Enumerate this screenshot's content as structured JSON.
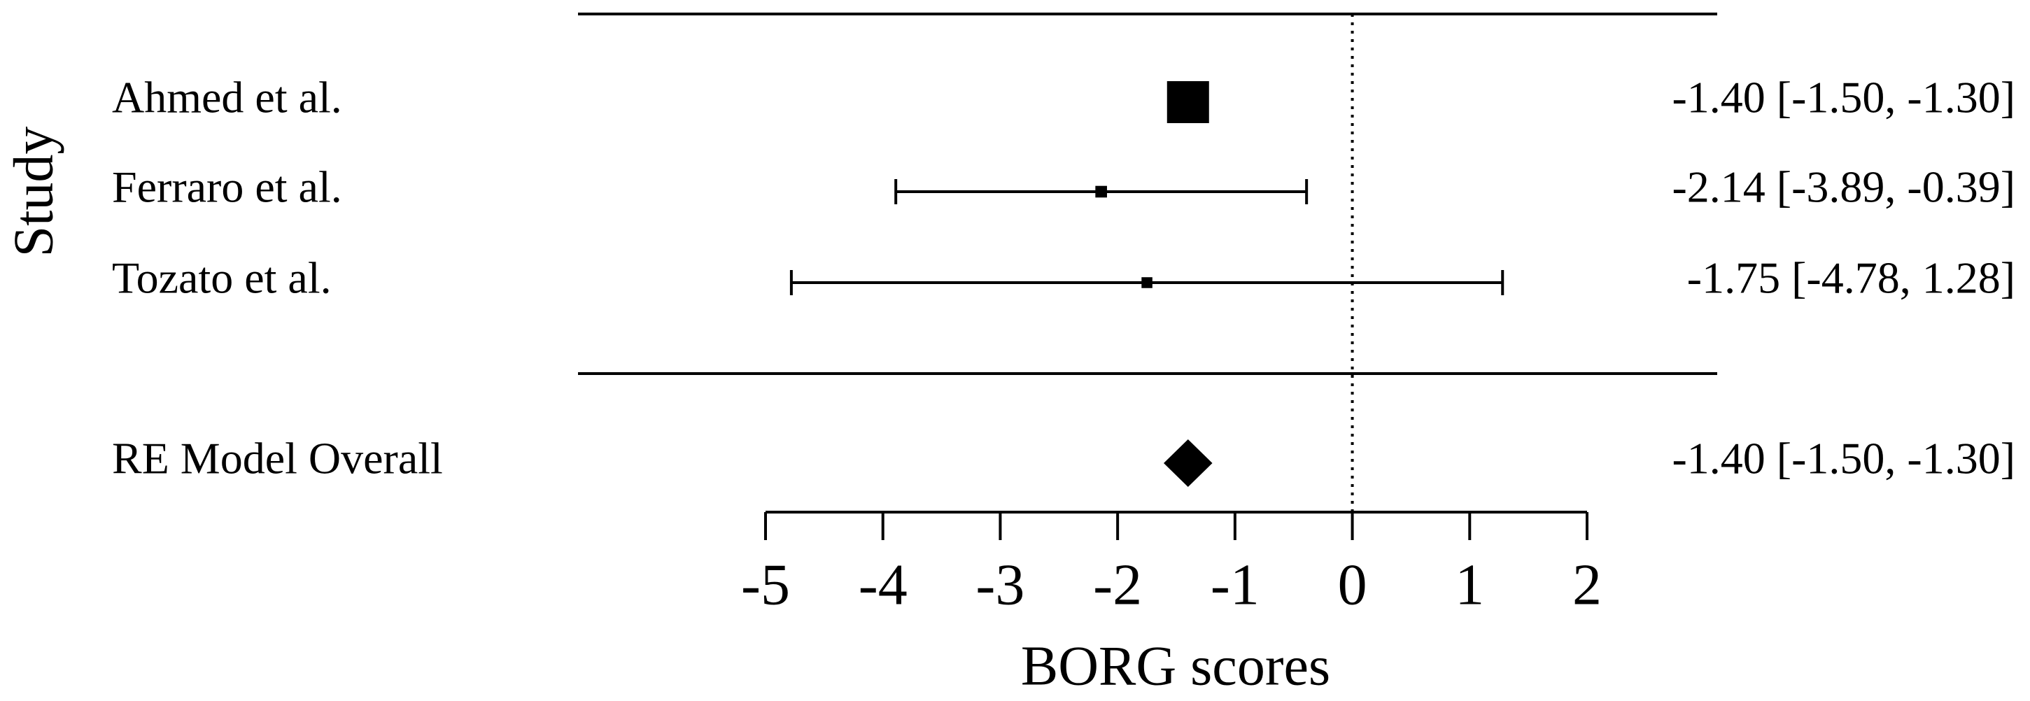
{
  "chart_data": {
    "type": "forest",
    "y_label": "Study",
    "x_label": "BORG scores",
    "categories": [
      "Ahmed et al.",
      "Ferraro et al.",
      "Tozato et al."
    ],
    "values": [
      -1.4,
      -2.14,
      -1.75
    ],
    "lower": [
      -1.5,
      -3.89,
      -4.78
    ],
    "upper": [
      -1.3,
      -0.39,
      1.28
    ],
    "value_labels": [
      "-1.40 [-1.50, -1.30]",
      "-2.14 [-3.89, -0.39]",
      "-1.75 [-4.78, 1.28]"
    ],
    "overall": {
      "label": "RE Model Overall",
      "value": -1.4,
      "lower": -1.5,
      "upper": -1.3,
      "value_label": "-1.40 [-1.50, -1.30]"
    },
    "reference_line": 0,
    "xlim": [
      -5,
      2
    ],
    "xticks": [
      -5,
      -4,
      -3,
      -2,
      -1,
      0,
      1,
      2
    ],
    "color": "#000000"
  }
}
